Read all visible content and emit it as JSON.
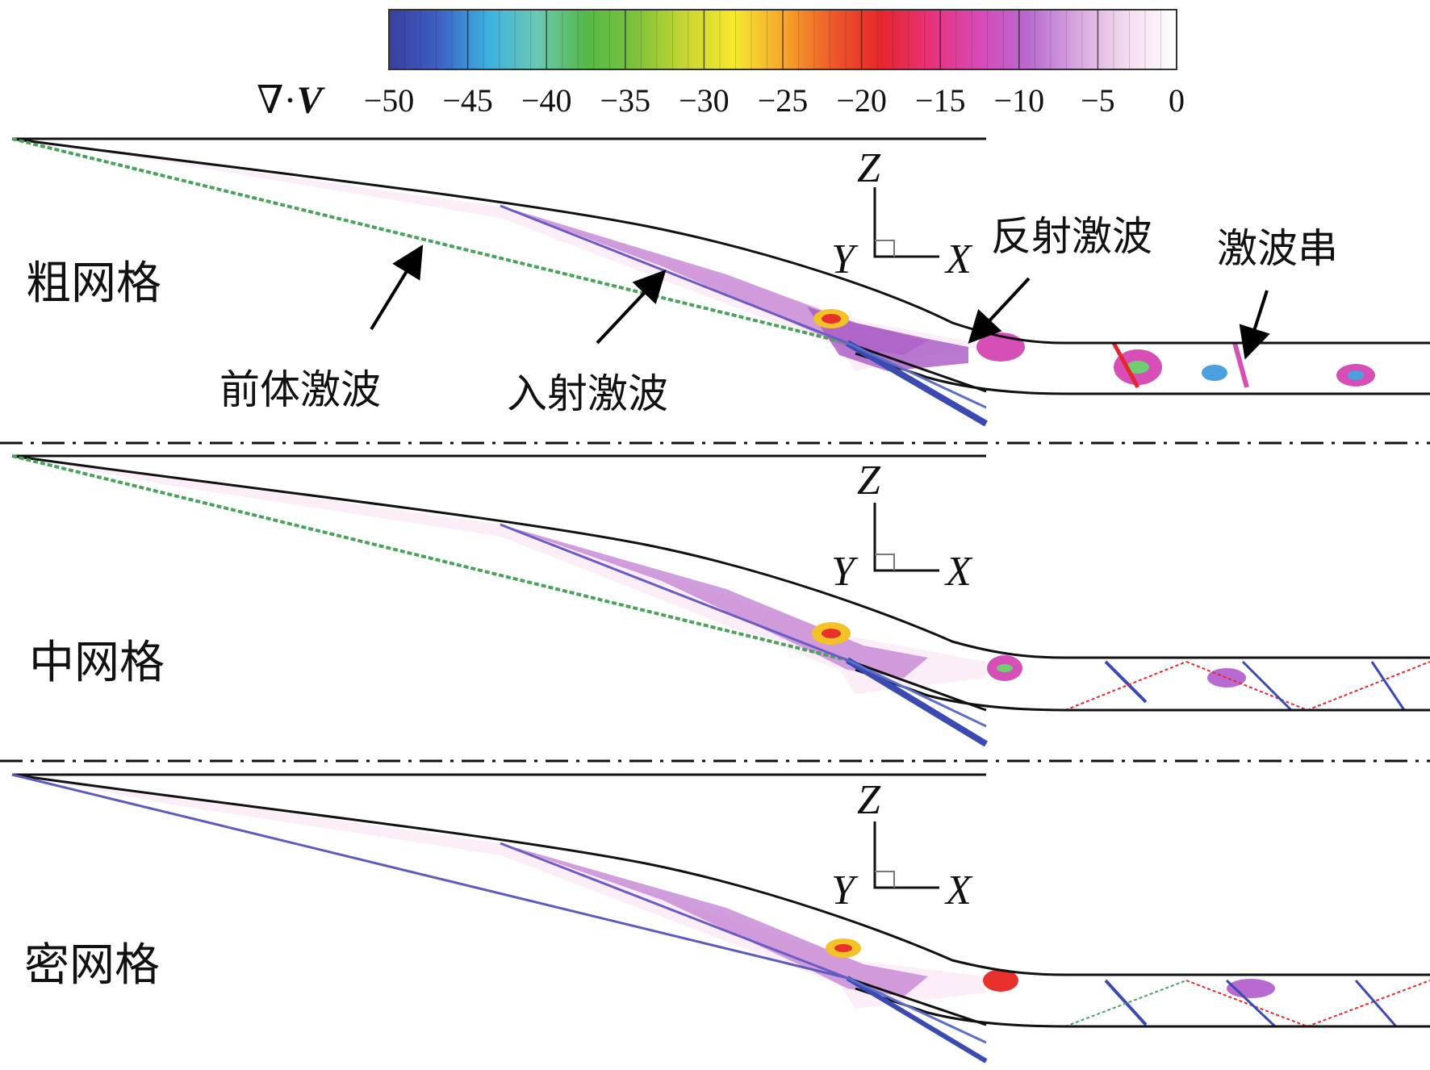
{
  "colorbar": {
    "symbol_nabla": "∇·",
    "symbol_v": "V",
    "ticks": [
      "−50",
      "−45",
      "−40",
      "−35",
      "−30",
      "−25",
      "−20",
      "−15",
      "−10",
      "−5",
      "0"
    ],
    "range": [
      -50,
      0
    ],
    "colors": [
      "#3a3f9e",
      "#3d5fc4",
      "#3cb0e0",
      "#6cc8b4",
      "#55b848",
      "#7cc23a",
      "#c6d632",
      "#f6e92c",
      "#f6a72b",
      "#ee5a2a",
      "#e6262c",
      "#e8327a",
      "#d74ab8",
      "#b86ad0",
      "#d9a8e0",
      "#f4dcef",
      "#ffffff"
    ]
  },
  "panels": [
    {
      "label": "粗网格",
      "annotations": [
        "前体激波",
        "入射激波",
        "反射激波",
        "激波串"
      ]
    },
    {
      "label": "中网格"
    },
    {
      "label": "密网格"
    }
  ],
  "axes_triad": {
    "z": "Z",
    "y": "Y",
    "x": "X"
  }
}
